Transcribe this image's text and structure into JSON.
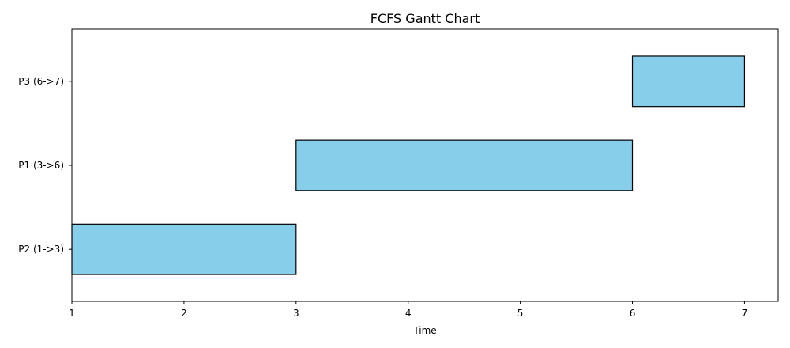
{
  "chart_data": {
    "type": "bar",
    "orientation": "horizontal",
    "title": "FCFS Gantt Chart",
    "xlabel": "Time",
    "ylabel": "",
    "xlim": [
      1,
      7.3
    ],
    "xticks": [
      1,
      2,
      3,
      4,
      5,
      6,
      7
    ],
    "grid": false,
    "bar_color": "#87ceeb",
    "edge_color": "#000000",
    "tasks": [
      {
        "label": "P2 (1->3)",
        "start": 1,
        "end": 3
      },
      {
        "label": "P1 (3->6)",
        "start": 3,
        "end": 6
      },
      {
        "label": "P3 (6->7)",
        "start": 6,
        "end": 7
      }
    ]
  }
}
